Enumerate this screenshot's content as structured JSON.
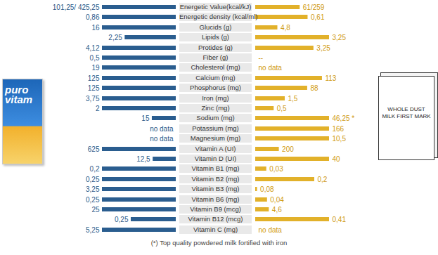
{
  "chart_data": {
    "type": "bar",
    "orientation": "horizontal",
    "data_labels": true,
    "tick_labels": false,
    "categories": [
      "Energetic Value(kcal/kJ)",
      "Energetic density  (kcal/ml)",
      "Glucids (g)",
      "Lipids  (g)",
      "Protides  (g)",
      "Fiber (g)",
      "Cholesterol  (mg)",
      "Calcium  (mg)",
      "Phosphorus  (mg)",
      "Iron (mg)",
      "Zinc  (mg)",
      "Sodium (mg)",
      "Potassium  (mg)",
      "Magnesium  (mg)",
      "Vitamin A (UI)",
      "Vitamin D  (UI)",
      "Vitamin B1 (mg)",
      "Vitamin B2 (mg)",
      "Vitamin B3 (mg)",
      "Vitamin B6 (mg)",
      "Vitamin B9 (mcg)",
      "Vitamin B12 (mcg)",
      "Vitamin C  (mg)"
    ],
    "series": [
      {
        "name": "puro vitam",
        "color": "#2a5d8f",
        "values": [
          101.25,
          0.86,
          16,
          2.25,
          4.12,
          0.5,
          19,
          125,
          125,
          3.75,
          2,
          15,
          null,
          null,
          625,
          12.5,
          0.2,
          0.25,
          3.25,
          0.25,
          25,
          0.25,
          5.25
        ],
        "value_labels": [
          "101,25/ 425,25",
          "0,86",
          "16",
          "2,25",
          "4,12",
          "0,5",
          "19",
          "125",
          "125",
          "3,75",
          "2",
          "15",
          "no data",
          "no data",
          "625",
          "12,5",
          "0,2",
          "0,25",
          "3,25",
          "0,25",
          "25",
          "0,25",
          "5,25"
        ]
      },
      {
        "name": "WHOLE DUST MILK FIRST MARK",
        "color": "#e2b12a",
        "values": [
          61,
          0.61,
          4.8,
          3.25,
          3.25,
          null,
          null,
          113,
          88,
          1.5,
          0.5,
          46.25,
          166,
          10.5,
          200,
          40,
          0.03,
          0.2,
          0.08,
          0.04,
          4.6,
          0.41,
          null
        ],
        "value_labels": [
          "61/259",
          "0,61",
          "4,8",
          "3,25",
          "3,25",
          "--",
          "no data",
          "113",
          "88",
          "1,5",
          "0,5",
          "46,25 *",
          "166",
          "10,5",
          "200",
          "40",
          "0,03",
          "0,2",
          "0,08",
          "0,04",
          "4,6",
          "0,41",
          "no data"
        ]
      }
    ],
    "annotations": [
      "(*) Top quality powdered milk fortified with iron"
    ]
  }
}
